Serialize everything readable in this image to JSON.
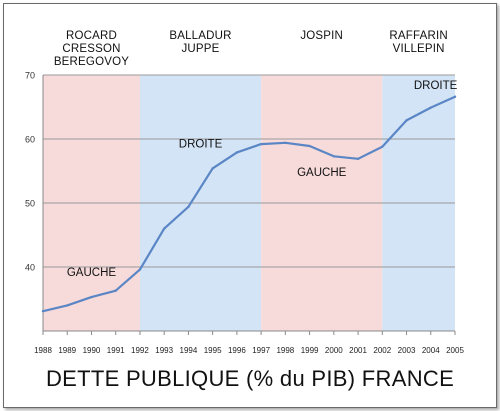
{
  "chart_data": {
    "type": "line",
    "title": "DETTE PUBLIQUE (% du PIB) FRANCE",
    "x": [
      1988,
      1989,
      1990,
      1991,
      1992,
      1993,
      1994,
      1995,
      1996,
      1997,
      1998,
      1999,
      2000,
      2001,
      2002,
      2003,
      2004,
      2005
    ],
    "y": [
      33.1,
      34.0,
      35.3,
      36.3,
      39.6,
      46.0,
      49.4,
      55.4,
      57.9,
      59.2,
      59.4,
      58.9,
      57.3,
      56.9,
      58.8,
      62.9,
      64.9,
      66.6
    ],
    "ylim": [
      30,
      70
    ],
    "yticks": [
      40,
      50,
      60,
      70
    ],
    "xlim": [
      1988,
      2005
    ],
    "xlabel": "",
    "ylabel": "",
    "grid": "horizontal",
    "line_color": "#5b86c5",
    "periods": [
      {
        "start": 1988,
        "end": 1992,
        "color": "#f7dada",
        "label_lines": [
          "ROCARD",
          "CRESSON",
          "BEREGOVOY"
        ],
        "band_label": "GAUCHE",
        "band_label_at": [
          1990,
          38.6
        ]
      },
      {
        "start": 1992,
        "end": 1997,
        "color": "#d3e4f6",
        "label_lines": [
          "BALLADUR",
          "JUPPE"
        ],
        "band_label": "DROITE",
        "band_label_at": [
          1994.5,
          58.7
        ]
      },
      {
        "start": 1997,
        "end": 2002,
        "color": "#f7dada",
        "label_lines": [
          "JOSPIN"
        ],
        "band_label": "GAUCHE",
        "band_label_at": [
          1999.5,
          54.2
        ]
      },
      {
        "start": 2002,
        "end": 2005,
        "color": "#d3e4f6",
        "label_lines": [
          "RAFFARIN",
          "VILLEPIN"
        ],
        "band_label": "DROITE",
        "band_label_at": [
          2004.2,
          67.8
        ]
      }
    ]
  }
}
